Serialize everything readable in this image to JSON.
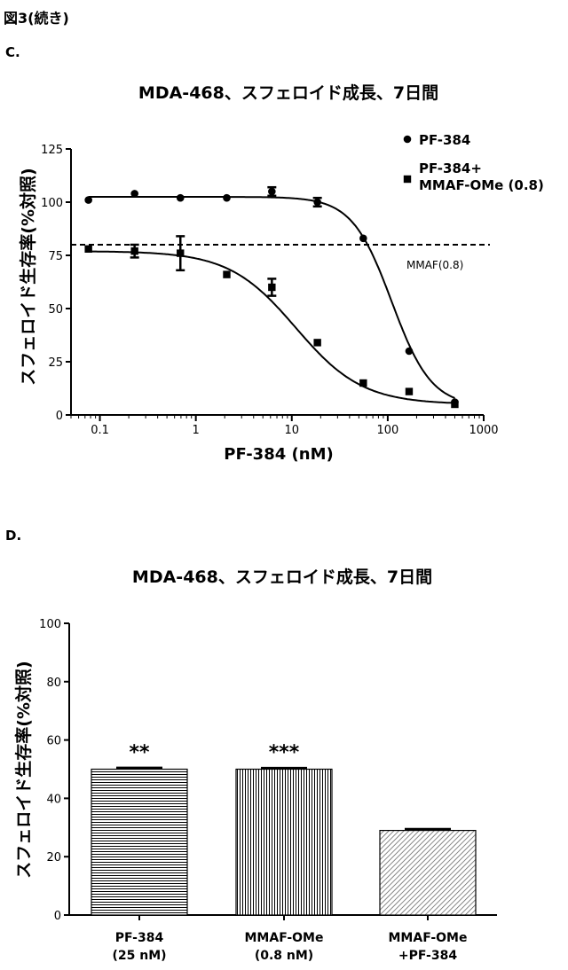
{
  "figure_label": "図3(続き)",
  "chart_data": [
    {
      "panel": "C.",
      "type": "scatter",
      "title": "MDA-468、スフェロイド成長、7日間",
      "xlabel": "PF-384 (nM)",
      "ylabel": "スフェロイド生存率(%対照)",
      "x_scale": "log",
      "xlim": [
        0.05,
        1000
      ],
      "ylim": [
        0,
        125
      ],
      "x_ticks": [
        0.1,
        1,
        10,
        100,
        1000
      ],
      "x_tick_labels": [
        "0.1",
        "1",
        "10",
        "100",
        "1000"
      ],
      "y_ticks": [
        0,
        25,
        50,
        75,
        100,
        125
      ],
      "y_tick_labels": [
        "0",
        "25",
        "50",
        "75",
        "100",
        "125"
      ],
      "legend_position": "top-right",
      "series": [
        {
          "name": "PF-384",
          "marker": "circle",
          "x": [
            0.076,
            0.23,
            0.69,
            2.1,
            6.2,
            18.5,
            55.6,
            167,
            500
          ],
          "y": [
            101,
            104,
            102,
            102,
            105,
            100,
            83,
            30,
            6
          ],
          "err": [
            0,
            0,
            0,
            0,
            2,
            2,
            0,
            0,
            0
          ],
          "fit": {
            "top": 102.5,
            "bottom": 4,
            "ec50": 110,
            "hill": 2.1
          }
        },
        {
          "name": "PF-384+\nMMAF-OMe (0.8)",
          "marker": "square",
          "x": [
            0.076,
            0.23,
            0.69,
            2.1,
            6.2,
            18.5,
            55.6,
            167,
            500
          ],
          "y": [
            78,
            77,
            76,
            66,
            60,
            34,
            15,
            11,
            5
          ],
          "err": [
            0,
            3,
            8,
            0,
            4,
            0,
            0,
            0,
            0
          ],
          "fit": {
            "top": 77,
            "bottom": 5,
            "ec50": 11,
            "hill": 1.25
          }
        }
      ],
      "reference_line": {
        "y": 80,
        "label": "MMAF(0.8)",
        "style": "dashed"
      }
    },
    {
      "panel": "D.",
      "type": "bar",
      "title": "MDA-468、スフェロイド成長、7日間",
      "ylabel": "スフェロイド生存率(%対照)",
      "ylim": [
        0,
        100
      ],
      "y_ticks": [
        0,
        20,
        40,
        60,
        80,
        100
      ],
      "y_tick_labels": [
        "0",
        "20",
        "40",
        "60",
        "80",
        "100"
      ],
      "categories": [
        "PF-384\n(25 nM)",
        "MMAF-OMe\n(0.8 nM)",
        "MMAF-OMe\n+PF-384"
      ],
      "values": [
        50,
        50,
        29
      ],
      "errors": [
        0.5,
        0.4,
        0.5
      ],
      "significance": [
        "**",
        "***",
        ""
      ],
      "patterns": [
        "horizontal",
        "vertical",
        "diagonal"
      ]
    }
  ]
}
